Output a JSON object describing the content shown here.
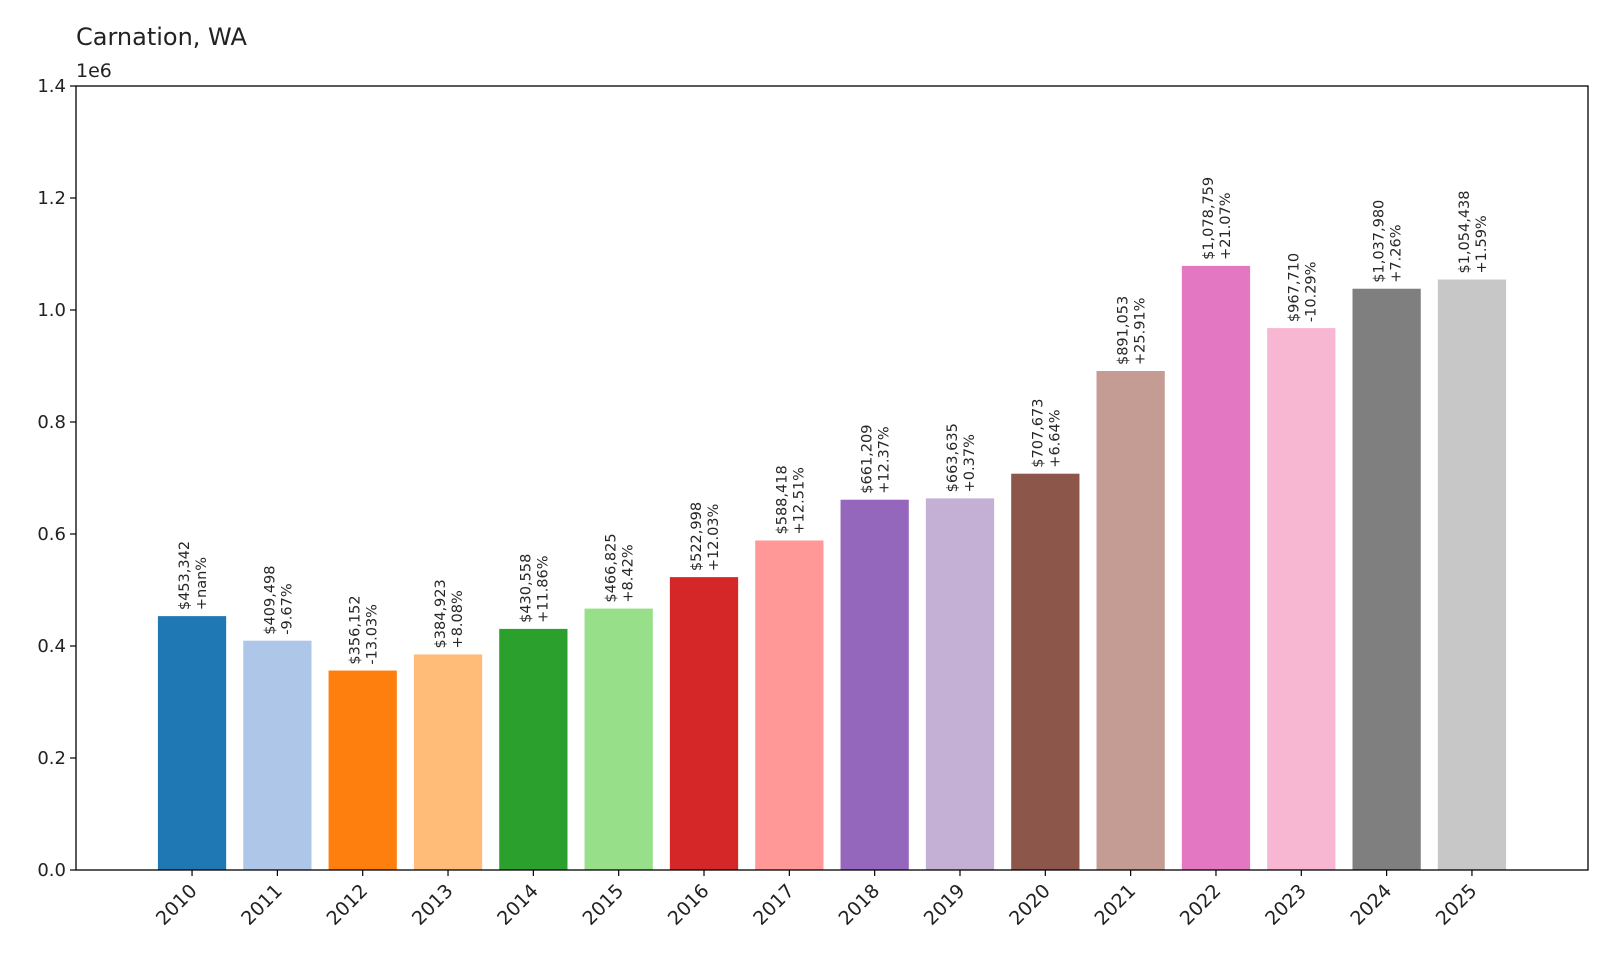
{
  "chart_data": {
    "type": "bar",
    "title": "Carnation, WA",
    "xlabel": "",
    "ylabel": "",
    "y_offset_label": "1e6",
    "ylim": [
      0,
      1.4
    ],
    "yticks": [
      0.0,
      0.2,
      0.4,
      0.6,
      0.8,
      1.0,
      1.2,
      1.4
    ],
    "ytick_labels": [
      "0.0",
      "0.2",
      "0.4",
      "0.6",
      "0.8",
      "1.0",
      "1.2",
      "1.4"
    ],
    "grid": false,
    "legend": "none",
    "categories": [
      "2010",
      "2011",
      "2012",
      "2013",
      "2014",
      "2015",
      "2016",
      "2017",
      "2018",
      "2019",
      "2020",
      "2021",
      "2022",
      "2023",
      "2024",
      "2025"
    ],
    "values": [
      453342,
      409498,
      356152,
      384923,
      430558,
      466825,
      522998,
      588418,
      661209,
      663635,
      707673,
      891053,
      1078759,
      967710,
      1037980,
      1054438
    ],
    "value_labels": [
      "$453,342",
      "$409,498",
      "$356,152",
      "$384,923",
      "$430,558",
      "$466,825",
      "$522,998",
      "$588,418",
      "$661,209",
      "$663,635",
      "$707,673",
      "$891,053",
      "$1,078,759",
      "$967,710",
      "$1,037,980",
      "$1,054,438"
    ],
    "change_labels": [
      "+nan%",
      "-9.67%",
      "-13.03%",
      "+8.08%",
      "+11.86%",
      "+8.42%",
      "+12.03%",
      "+12.51%",
      "+12.37%",
      "+0.37%",
      "+6.64%",
      "+25.91%",
      "+21.07%",
      "-10.29%",
      "+7.26%",
      "+1.59%"
    ],
    "colors": [
      "#1f77b4",
      "#aec7e8",
      "#ff7f0e",
      "#ffbb78",
      "#2ca02c",
      "#98df8a",
      "#d62728",
      "#ff9896",
      "#9467bd",
      "#c5b0d5",
      "#8c564b",
      "#c49c94",
      "#e377c2",
      "#f7b6d2",
      "#7f7f7f",
      "#c7c7c7"
    ]
  }
}
